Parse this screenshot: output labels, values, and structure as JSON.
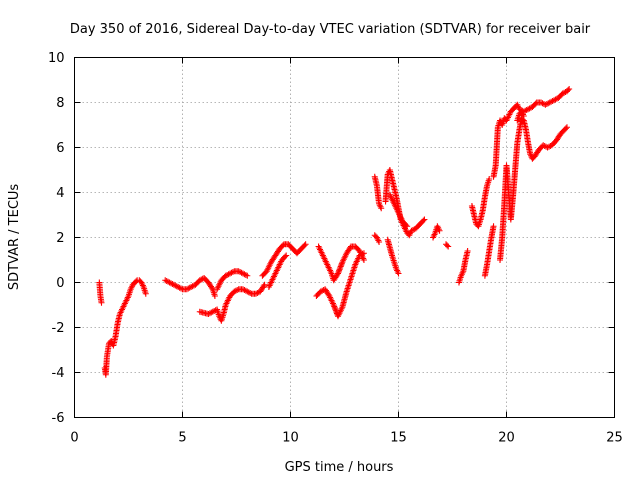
{
  "chart_data": {
    "type": "scatter",
    "title": "Day 350 of 2016, Sidereal Day-to-day VTEC variation (SDTVAR) for receiver bair",
    "xlabel": "GPS time / hours",
    "ylabel": "SDTVAR / TECUs",
    "xlim": [
      0,
      25
    ],
    "ylim": [
      -6,
      10
    ],
    "xticks": [
      0,
      5,
      10,
      15,
      20,
      25
    ],
    "yticks": [
      -6,
      -4,
      -2,
      0,
      2,
      4,
      6,
      8,
      10
    ],
    "xtick_labels": [
      "0",
      "5",
      "10",
      "15",
      "20",
      "25"
    ],
    "ytick_labels": [
      "-6",
      "-4",
      "-2",
      "0",
      "2",
      "4",
      "6",
      "8",
      "10"
    ],
    "grid": true,
    "marker": "+",
    "color": "#ff0000",
    "series": [
      {
        "segments": [
          [
            [
              1.15,
              0.0
            ],
            [
              1.2,
              -0.6
            ],
            [
              1.25,
              -0.9
            ]
          ],
          [
            [
              1.4,
              -3.8
            ],
            [
              1.45,
              -4.1
            ],
            [
              1.5,
              -3.3
            ],
            [
              1.55,
              -3.0
            ],
            [
              1.6,
              -2.7
            ],
            [
              1.7,
              -2.6
            ],
            [
              1.8,
              -2.8
            ],
            [
              1.9,
              -2.4
            ],
            [
              2.0,
              -1.8
            ],
            [
              2.1,
              -1.4
            ],
            [
              2.2,
              -1.2
            ],
            [
              2.3,
              -1.0
            ],
            [
              2.4,
              -0.8
            ],
            [
              2.5,
              -0.6
            ],
            [
              2.6,
              -0.3
            ],
            [
              2.7,
              -0.1
            ],
            [
              2.8,
              0.0
            ],
            [
              2.9,
              0.1
            ],
            [
              3.0,
              0.1
            ],
            [
              3.1,
              0.0
            ],
            [
              3.2,
              -0.2
            ],
            [
              3.3,
              -0.5
            ]
          ],
          [
            [
              4.2,
              0.1
            ],
            [
              4.4,
              0.0
            ],
            [
              4.6,
              -0.1
            ],
            [
              4.8,
              -0.2
            ],
            [
              5.0,
              -0.3
            ],
            [
              5.2,
              -0.3
            ],
            [
              5.4,
              -0.2
            ],
            [
              5.6,
              -0.1
            ],
            [
              5.8,
              0.1
            ],
            [
              6.0,
              0.2
            ],
            [
              6.2,
              0.0
            ],
            [
              6.4,
              -0.3
            ],
            [
              6.5,
              -0.6
            ]
          ],
          [
            [
              5.8,
              -1.3
            ],
            [
              6.0,
              -1.35
            ],
            [
              6.2,
              -1.4
            ],
            [
              6.4,
              -1.3
            ],
            [
              6.6,
              -1.2
            ],
            [
              6.7,
              -1.5
            ],
            [
              6.8,
              -1.7
            ],
            [
              6.9,
              -1.4
            ],
            [
              7.0,
              -1.0
            ],
            [
              7.2,
              -0.6
            ],
            [
              7.4,
              -0.4
            ],
            [
              7.6,
              -0.3
            ],
            [
              7.8,
              -0.3
            ],
            [
              8.0,
              -0.4
            ],
            [
              8.2,
              -0.5
            ],
            [
              8.4,
              -0.5
            ],
            [
              8.6,
              -0.4
            ],
            [
              8.8,
              -0.1
            ]
          ],
          [
            [
              6.6,
              -0.3
            ],
            [
              6.8,
              0.1
            ],
            [
              7.0,
              0.3
            ],
            [
              7.2,
              0.4
            ],
            [
              7.4,
              0.5
            ],
            [
              7.6,
              0.5
            ],
            [
              7.8,
              0.4
            ],
            [
              8.0,
              0.3
            ]
          ],
          [
            [
              8.7,
              0.3
            ],
            [
              8.9,
              0.5
            ],
            [
              9.1,
              0.9
            ],
            [
              9.3,
              1.2
            ],
            [
              9.5,
              1.5
            ],
            [
              9.7,
              1.7
            ],
            [
              9.9,
              1.7
            ],
            [
              10.1,
              1.5
            ],
            [
              10.3,
              1.3
            ],
            [
              10.5,
              1.5
            ],
            [
              10.7,
              1.7
            ]
          ],
          [
            [
              9.0,
              -0.2
            ],
            [
              9.2,
              0.2
            ],
            [
              9.4,
              0.6
            ],
            [
              9.6,
              1.0
            ],
            [
              9.8,
              1.2
            ]
          ],
          [
            [
              11.3,
              1.6
            ],
            [
              11.5,
              1.2
            ],
            [
              11.7,
              0.8
            ],
            [
              11.9,
              0.4
            ],
            [
              12.0,
              0.1
            ],
            [
              12.2,
              0.4
            ],
            [
              12.4,
              0.9
            ],
            [
              12.6,
              1.3
            ],
            [
              12.8,
              1.6
            ],
            [
              13.0,
              1.6
            ],
            [
              13.2,
              1.4
            ],
            [
              13.4,
              1.0
            ]
          ],
          [
            [
              11.2,
              -0.6
            ],
            [
              11.4,
              -0.4
            ],
            [
              11.6,
              -0.3
            ],
            [
              11.8,
              -0.6
            ],
            [
              12.0,
              -1.0
            ],
            [
              12.2,
              -1.5
            ],
            [
              12.4,
              -1.1
            ],
            [
              12.6,
              -0.4
            ],
            [
              12.8,
              0.2
            ],
            [
              13.0,
              0.8
            ],
            [
              13.2,
              1.2
            ],
            [
              13.4,
              1.3
            ]
          ],
          [
            [
              13.9,
              4.7
            ],
            [
              14.0,
              4.3
            ],
            [
              14.1,
              3.5
            ],
            [
              14.2,
              3.3
            ]
          ],
          [
            [
              13.9,
              2.1
            ],
            [
              14.0,
              2.0
            ],
            [
              14.1,
              1.8
            ]
          ],
          [
            [
              14.4,
              3.6
            ],
            [
              14.5,
              4.8
            ],
            [
              14.6,
              5.0
            ],
            [
              14.7,
              4.6
            ],
            [
              14.8,
              4.2
            ],
            [
              14.9,
              3.8
            ],
            [
              15.0,
              3.3
            ],
            [
              15.1,
              2.8
            ],
            [
              15.2,
              2.6
            ],
            [
              15.3,
              2.4
            ],
            [
              15.4,
              2.2
            ],
            [
              15.5,
              2.1
            ],
            [
              15.6,
              2.3
            ],
            [
              15.8,
              2.4
            ],
            [
              16.0,
              2.6
            ],
            [
              16.2,
              2.8
            ]
          ],
          [
            [
              14.5,
              1.9
            ],
            [
              14.7,
              1.2
            ],
            [
              14.8,
              0.9
            ],
            [
              14.9,
              0.6
            ],
            [
              15.0,
              0.4
            ]
          ],
          [
            [
              14.6,
              3.9
            ],
            [
              14.8,
              3.5
            ],
            [
              15.0,
              3.1
            ],
            [
              15.2,
              2.7
            ],
            [
              15.4,
              2.5
            ]
          ],
          [
            [
              16.6,
              2.0
            ],
            [
              16.7,
              2.2
            ],
            [
              16.8,
              2.5
            ],
            [
              16.9,
              2.3
            ]
          ],
          [
            [
              17.2,
              1.7
            ],
            [
              17.3,
              1.6
            ]
          ],
          [
            [
              17.8,
              0.0
            ],
            [
              17.9,
              0.3
            ],
            [
              18.0,
              0.5
            ],
            [
              18.1,
              1.0
            ],
            [
              18.2,
              1.4
            ]
          ],
          [
            [
              18.4,
              3.4
            ],
            [
              18.5,
              3.0
            ],
            [
              18.6,
              2.6
            ],
            [
              18.7,
              2.5
            ],
            [
              18.8,
              2.8
            ],
            [
              18.9,
              3.2
            ],
            [
              19.0,
              3.8
            ],
            [
              19.1,
              4.3
            ],
            [
              19.2,
              4.6
            ]
          ],
          [
            [
              19.0,
              0.3
            ],
            [
              19.1,
              0.8
            ],
            [
              19.2,
              1.4
            ],
            [
              19.3,
              2.0
            ],
            [
              19.4,
              2.5
            ]
          ],
          [
            [
              19.4,
              4.7
            ],
            [
              19.5,
              5.2
            ],
            [
              19.6,
              6.9
            ],
            [
              19.7,
              7.2
            ],
            [
              19.8,
              7.0
            ],
            [
              19.9,
              7.3
            ],
            [
              20.0,
              7.2
            ],
            [
              20.1,
              7.4
            ],
            [
              20.2,
              7.6
            ],
            [
              20.3,
              7.7
            ],
            [
              20.4,
              7.8
            ],
            [
              20.5,
              7.9
            ],
            [
              20.6,
              7.7
            ],
            [
              20.8,
              7.6
            ],
            [
              21.0,
              7.7
            ],
            [
              21.2,
              7.8
            ],
            [
              21.4,
              8.0
            ],
            [
              21.6,
              8.0
            ],
            [
              21.8,
              7.9
            ],
            [
              22.0,
              8.0
            ],
            [
              22.2,
              8.1
            ],
            [
              22.4,
              8.2
            ],
            [
              22.6,
              8.4
            ],
            [
              22.8,
              8.5
            ],
            [
              22.9,
              8.6
            ]
          ],
          [
            [
              19.7,
              1.0
            ],
            [
              19.8,
              2.0
            ],
            [
              19.9,
              3.5
            ],
            [
              20.0,
              5.2
            ],
            [
              20.1,
              4.0
            ],
            [
              20.2,
              2.8
            ],
            [
              20.3,
              3.8
            ],
            [
              20.4,
              5.0
            ],
            [
              20.5,
              6.2
            ],
            [
              20.6,
              6.8
            ],
            [
              20.7,
              7.3
            ],
            [
              20.8,
              7.2
            ],
            [
              20.9,
              6.8
            ],
            [
              21.0,
              6.2
            ],
            [
              21.1,
              5.7
            ],
            [
              21.2,
              5.5
            ],
            [
              21.3,
              5.6
            ],
            [
              21.5,
              5.9
            ],
            [
              21.7,
              6.1
            ],
            [
              21.9,
              6.0
            ],
            [
              22.1,
              6.1
            ],
            [
              22.3,
              6.3
            ],
            [
              22.5,
              6.6
            ],
            [
              22.7,
              6.8
            ],
            [
              22.8,
              6.9
            ]
          ],
          [
            [
              20.5,
              7.2
            ],
            [
              20.6,
              7.5
            ],
            [
              20.7,
              7.6
            ],
            [
              20.8,
              7.4
            ]
          ]
        ]
      }
    ]
  }
}
